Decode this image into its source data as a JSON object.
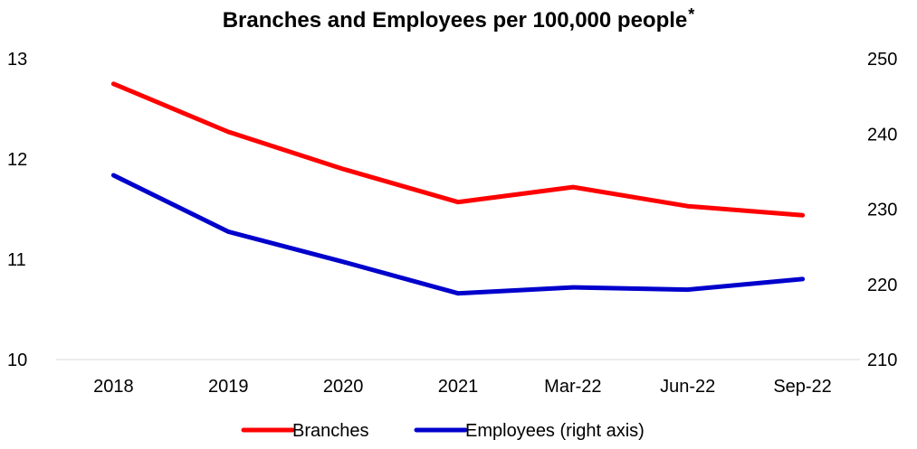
{
  "chart_data": {
    "type": "line",
    "title": "Branches and Employees per 100,000 people",
    "title_mark": "*",
    "categories": [
      "2018",
      "2019",
      "2020",
      "2021",
      "Mar-22",
      "Jun-22",
      "Sep-22"
    ],
    "y_left": {
      "ticks": [
        "13",
        "12",
        "11",
        "10"
      ],
      "ylim": [
        10,
        13
      ]
    },
    "y_right": {
      "ticks": [
        "250",
        "240",
        "230",
        "220",
        "210"
      ],
      "ylim": [
        210,
        250
      ]
    },
    "series": [
      {
        "name": "Branches",
        "axis": "left",
        "color": "#ff0000",
        "values": [
          12.75,
          12.27,
          11.9,
          11.57,
          11.72,
          11.53,
          11.44
        ]
      },
      {
        "name": "Employees (right axis)",
        "axis": "right",
        "color": "#0000cc",
        "values": [
          234.5,
          227.0,
          223.0,
          218.8,
          219.6,
          219.3,
          220.7
        ]
      }
    ],
    "grid": false,
    "legend_position": "bottom"
  }
}
